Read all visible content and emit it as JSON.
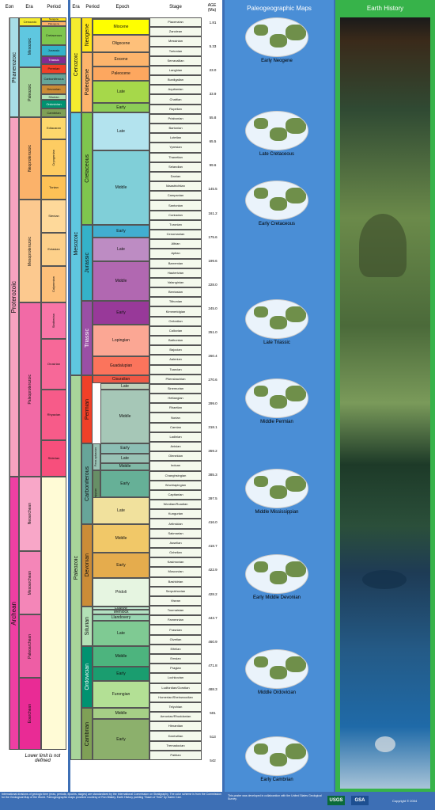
{
  "left_chart": {
    "headers": {
      "eon": "Eon",
      "era": "Era",
      "period": "Period"
    },
    "eons": [
      {
        "label": "Phanerozoic",
        "color": "#a8dde6"
      },
      {
        "label": "Proterozoic",
        "color": "#f7a3c0"
      },
      {
        "label": "Archean",
        "color": "#ef3fa3"
      }
    ],
    "eras": [
      {
        "label": "Cenozoic",
        "color": "#f5ec2f"
      },
      {
        "label": "Mesozoic",
        "color": "#5fc7e0"
      },
      {
        "label": "Paleozoic",
        "color": "#a8d59a"
      },
      {
        "label": "Neoproterozoic",
        "color": "#fbb26a"
      },
      {
        "label": "Mesoproterozoic",
        "color": "#fcc98f"
      },
      {
        "label": "Paleoproterozoic",
        "color": "#f26aa6"
      },
      {
        "label": "Neoarchean",
        "color": "#f8a7c8"
      },
      {
        "label": "Mesoarchean",
        "color": "#f486b8"
      },
      {
        "label": "Paleoarchean",
        "color": "#ee5ea5"
      },
      {
        "label": "Eoarchean",
        "color": "#e92b95"
      }
    ],
    "periods": [
      {
        "label": "Neogene",
        "color": "#ffe619"
      },
      {
        "label": "Paleogene",
        "color": "#fdb46b"
      },
      {
        "label": "Cretaceous",
        "color": "#7fc64e"
      },
      {
        "label": "Jurassic",
        "color": "#34b2c9"
      },
      {
        "label": "Triassic",
        "color": "#812b92"
      },
      {
        "label": "Permian",
        "color": "#f04028"
      },
      {
        "label": "Carboniferous",
        "color": "#67a599"
      },
      {
        "label": "Devonian",
        "color": "#cb8c37"
      },
      {
        "label": "Silurian",
        "color": "#b3e1b6"
      },
      {
        "label": "Ordovician",
        "color": "#009270"
      },
      {
        "label": "Cambrian",
        "color": "#7fa056"
      },
      {
        "label": "Ediacaran",
        "color": "#fdd86c"
      },
      {
        "label": "Cryogenian",
        "color": "#fdcc62"
      },
      {
        "label": "Tonian",
        "color": "#fdc156"
      },
      {
        "label": "Stenian",
        "color": "#fed99a"
      },
      {
        "label": "Ectasian",
        "color": "#fdd08a"
      },
      {
        "label": "Calymmian",
        "color": "#fdc07a"
      },
      {
        "label": "Statherian",
        "color": "#f875a7"
      },
      {
        "label": "Orosirian",
        "color": "#f76898"
      },
      {
        "label": "Rhyacian",
        "color": "#f75b89"
      },
      {
        "label": "Siderian",
        "color": "#f74f7c"
      }
    ],
    "lower_limit_note": "Lower limit is not defined"
  },
  "mid_chart": {
    "headers": {
      "era": "Era",
      "period": "Period",
      "epoch": "Epoch",
      "stage": "Stage",
      "age": "AGE (Ma)"
    },
    "eras": [
      {
        "label": "Cenozoic",
        "color": "#f5ec2f"
      },
      {
        "label": "Mesozoic",
        "color": "#5fc7e0"
      },
      {
        "label": "Paleozoic",
        "color": "#a8d59a"
      }
    ],
    "periods": [
      {
        "label": "Neogene",
        "color": "#ffe619"
      },
      {
        "label": "Paleogene",
        "color": "#fdb46b"
      },
      {
        "label": "Cretaceous",
        "color": "#7fc64e"
      },
      {
        "label": "Jurassic",
        "color": "#34b2c9"
      },
      {
        "label": "Triassic",
        "color": "#9a4fa5"
      },
      {
        "label": "Permian",
        "color": "#f04028"
      },
      {
        "label": "Carboniferous",
        "color": "#67a599"
      },
      {
        "label": "Devonian",
        "color": "#cb8c37"
      },
      {
        "label": "Silurian",
        "color": "#b3e1b6"
      },
      {
        "label": "Ordovician",
        "color": "#009270"
      },
      {
        "label": "Cambrian",
        "color": "#7fa056"
      }
    ],
    "epochs": [
      {
        "label": "Pliocene",
        "color": "#ffff99"
      },
      {
        "label": "Miocene",
        "color": "#ffff00"
      },
      {
        "label": "Oligocene",
        "color": "#fec07a"
      },
      {
        "label": "Eocene",
        "color": "#fdb46c"
      },
      {
        "label": "Paleocene",
        "color": "#fda75f"
      },
      {
        "label": "Late",
        "color": "#a6d84a"
      },
      {
        "label": "Early",
        "color": "#8ccd57"
      },
      {
        "label": "Late",
        "color": "#b3e3ee"
      },
      {
        "label": "Middle",
        "color": "#80cfd8"
      },
      {
        "label": "Early",
        "color": "#42aed0"
      },
      {
        "label": "Late",
        "color": "#bd8cc3"
      },
      {
        "label": "Middle",
        "color": "#b168b1"
      },
      {
        "label": "Early",
        "color": "#983999"
      },
      {
        "label": "Lopingian",
        "color": "#fba794"
      },
      {
        "label": "Guadalupian",
        "color": "#fb745c"
      },
      {
        "label": "Cisuralian",
        "color": "#ef5845"
      },
      {
        "label": "Late",
        "color": "#bfd0ba"
      },
      {
        "label": "Middle",
        "color": "#a6c7b7"
      },
      {
        "label": "Early",
        "color": "#8cbeb4"
      },
      {
        "label": "Late",
        "color": "#99c2b5"
      },
      {
        "label": "Middle",
        "color": "#80b9a7"
      },
      {
        "label": "Early",
        "color": "#66b097"
      },
      {
        "label": "Late",
        "color": "#f1e19d"
      },
      {
        "label": "Middle",
        "color": "#f1c868"
      },
      {
        "label": "Early",
        "color": "#e5ac4d"
      },
      {
        "label": "Pridoli",
        "color": "#e6f5e1"
      },
      {
        "label": "Ludlow",
        "color": "#bfe6cf"
      },
      {
        "label": "Wenlock",
        "color": "#b3e1c2"
      },
      {
        "label": "Llandovery",
        "color": "#99d7b3"
      },
      {
        "label": "Late",
        "color": "#7fca93"
      },
      {
        "label": "Middle",
        "color": "#4db47e"
      },
      {
        "label": "Early",
        "color": "#1a9d6f"
      },
      {
        "label": "Furongian",
        "color": "#b3e095"
      },
      {
        "label": "Middle",
        "color": "#a6cf86"
      },
      {
        "label": "Early",
        "color": "#8cb06c"
      }
    ],
    "stages": [
      "Piacenzian",
      "Zanclean",
      "Messinian",
      "Tortonian",
      "Serravallian",
      "Langhian",
      "Burdigalian",
      "Aquitanian",
      "Chattian",
      "Rupelian",
      "Priabonian",
      "Bartonian",
      "Lutetian",
      "Ypresian",
      "Thanetian",
      "Selandian",
      "Danian",
      "Maastrichtian",
      "Campanian",
      "Santonian",
      "Coniacian",
      "Turonian",
      "Cenomanian",
      "Albian",
      "Aptian",
      "Barremian",
      "Hauterivian",
      "Valanginian",
      "Berriasian",
      "Tithonian",
      "Kimmeridgian",
      "Oxfordian",
      "Callovian",
      "Bathonian",
      "Bajocian",
      "Aalenian",
      "Toarcian",
      "Pliensbachian",
      "Sinemurian",
      "Hettangian",
      "Rhaetian",
      "Norian",
      "Carnian",
      "Ladinian",
      "Anisian",
      "Olenekian",
      "Induan",
      "Changhsingian",
      "Wuchiapingian",
      "Capitanian",
      "Wordian/Roadian",
      "Kungurian",
      "Artinskian",
      "Sakmarian",
      "Asselian",
      "Gzhelian",
      "Kasimovian",
      "Moscovian",
      "Bashkirian",
      "Serpukhovian",
      "Visean",
      "Tournaisian",
      "Famennian",
      "Frasnian",
      "Givetian",
      "Eifelian",
      "Emsian",
      "Pragian",
      "Lochkovian",
      "Ludfordian/Gorstian",
      "Homerian/Sheinwoodian",
      "Telychian",
      "Aeronian/Rhuddanian",
      "Hirnantian",
      "Darriwilian",
      "Tremadocian",
      "Paibian"
    ],
    "ages": [
      "1.81",
      "5.33",
      "23.0",
      "33.9",
      "55.8",
      "65.5",
      "99.6",
      "145.5",
      "161.2",
      "175.6",
      "199.6",
      "228.0",
      "245.0",
      "251.0",
      "260.4",
      "270.6",
      "299.0",
      "318.1",
      "359.2",
      "385.3",
      "397.5",
      "416.0",
      "418.7",
      "422.9",
      "428.2",
      "443.7",
      "460.9",
      "471.8",
      "488.3",
      "501",
      "513",
      "542"
    ],
    "subperiods": [
      {
        "label": "Penn-sylvanian"
      },
      {
        "label": "Missis-sippian"
      }
    ]
  },
  "maps": {
    "title": "Paleogeographic Maps",
    "items": [
      "Early Neogene",
      "Late Cretaceous",
      "Early Cretaceous",
      "Late Triassic",
      "Middle Permian",
      "Middle Mississippian",
      "Early Middle Devonian",
      "Middle Ordovician",
      "Early Cambrian"
    ]
  },
  "history": {
    "title": "Earth History"
  },
  "footer": {
    "left": "International divisions of geologic time (eras, periods, epochs, stages) are standardized by the International Commission on Stratigraphy. The color scheme is from the Commission for the Geological Map of the World. Paleogeographic maps provided courtesy of Ron Blakey. Earth History painting \"Dawn of Time\" by Karen Carr.",
    "right": "This poster was developed in collaboration with the United States Geological Survey.",
    "copyright": "Copyright © 2004",
    "logo1": "USGS",
    "logo2": "GSA"
  }
}
